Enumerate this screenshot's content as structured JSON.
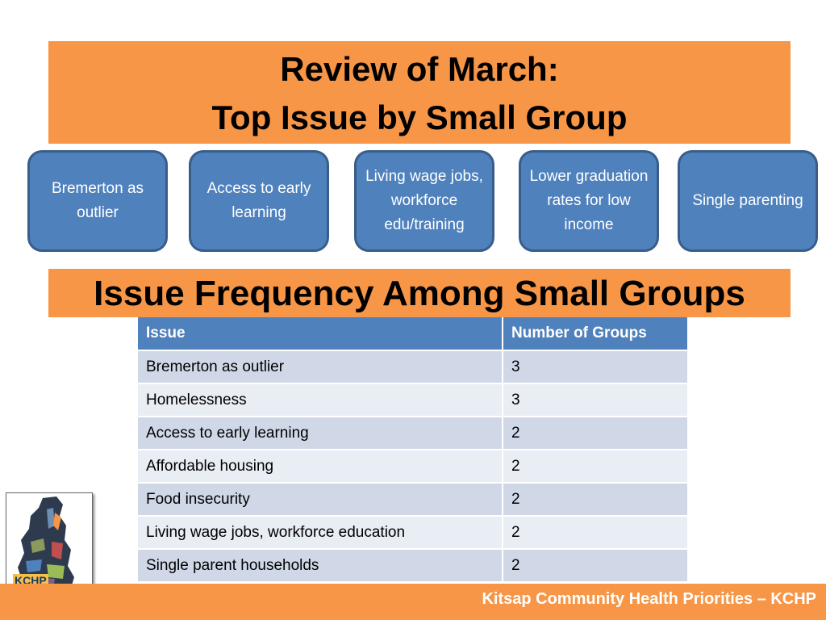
{
  "title": {
    "line1": "Review of March:",
    "line2": "Top Issue by Small Group"
  },
  "groups": [
    {
      "label": "Bremerton as outlier"
    },
    {
      "label": "Access to early learning"
    },
    {
      "label": "Living wage jobs, workforce edu/training"
    },
    {
      "label": "Lower graduation rates for low income"
    },
    {
      "label": "Single parenting"
    }
  ],
  "subtitle": "Issue Frequency Among Small Groups",
  "table": {
    "headers": [
      "Issue",
      "Number of Groups"
    ],
    "rows": [
      {
        "issue": "Bremerton as outlier",
        "count": "3"
      },
      {
        "issue": "Homelessness",
        "count": "3"
      },
      {
        "issue": "Access to early learning",
        "count": "2"
      },
      {
        "issue": "Affordable housing",
        "count": "2"
      },
      {
        "issue": "Food insecurity",
        "count": "2"
      },
      {
        "issue": "Living wage jobs, workforce education",
        "count": "2"
      },
      {
        "issue": "Single parent households",
        "count": "2"
      }
    ]
  },
  "logo": {
    "text": "KCHP"
  },
  "footer": "Kitsap Community Health Priorities – KCHP",
  "colors": {
    "accent_orange": "#f79646",
    "box_blue": "#4f81bd",
    "row_odd": "#d0d8e8",
    "row_even": "#e9edf4"
  }
}
